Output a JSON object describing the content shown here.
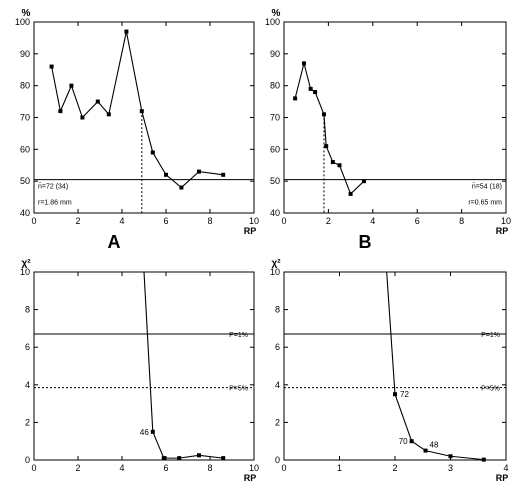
{
  "chart_data": [
    {
      "id": "A",
      "type": "line",
      "panel_label": "A",
      "ylabel": "%",
      "xlabel": "RP",
      "xlim": [
        0,
        10
      ],
      "ylim": [
        40,
        100
      ],
      "xticks": [
        0,
        2,
        4,
        6,
        8,
        10
      ],
      "yticks": [
        40,
        50,
        60,
        70,
        80,
        90,
        100
      ],
      "series": [
        {
          "x": [
            0.8,
            1.2,
            1.7,
            2.2,
            2.9,
            3.4,
            4.2,
            4.9,
            5.4,
            6.0,
            6.7,
            7.5,
            8.6
          ],
          "y": [
            86,
            72,
            80,
            70,
            75,
            71,
            97,
            72,
            59,
            52,
            48,
            53,
            52
          ]
        }
      ],
      "reference_line": {
        "y": 50.5,
        "label": "n̄=72 (34)"
      },
      "vertical_marker": {
        "x": 4.9,
        "y_top": 72
      },
      "annotation": "r=1.86 mm"
    },
    {
      "id": "B",
      "type": "line",
      "panel_label": "B",
      "ylabel": "%",
      "xlabel": "RP",
      "xlim": [
        0,
        10
      ],
      "ylim": [
        40,
        100
      ],
      "xticks": [
        0,
        2,
        4,
        6,
        8,
        10
      ],
      "yticks": [
        40,
        50,
        60,
        70,
        80,
        90,
        100
      ],
      "series": [
        {
          "x": [
            0.5,
            0.9,
            1.2,
            1.4,
            1.8,
            1.9,
            2.2,
            2.5,
            3.0,
            3.6
          ],
          "y": [
            76,
            87,
            79,
            78,
            71,
            61,
            56,
            55,
            46,
            50
          ]
        }
      ],
      "reference_line": {
        "y": 50.5,
        "label": "n̄=54 (18)"
      },
      "vertical_marker": {
        "x": 1.8,
        "y_top": 71
      },
      "annotation": "r=0.65 mm"
    },
    {
      "id": "C",
      "type": "line",
      "ylabel": "χ²",
      "xlabel": "RP",
      "xlim": [
        0,
        10
      ],
      "ylim": [
        0,
        10
      ],
      "xticks": [
        0,
        2,
        4,
        6,
        8,
        10
      ],
      "yticks": [
        0,
        2,
        4,
        6,
        8,
        10
      ],
      "series": [
        {
          "x": [
            5.0,
            5.4,
            5.9,
            6.6,
            7.5,
            8.6
          ],
          "y": [
            10,
            1.5,
            0.1,
            0.1,
            0.25,
            0.1
          ],
          "point_labels": [
            {
              "index": 1,
              "text": "46"
            }
          ]
        }
      ],
      "threshold_lines": [
        {
          "y": 6.7,
          "label": "P=1%",
          "style": "solid"
        },
        {
          "y": 3.85,
          "label": "P=5%",
          "style": "dotted"
        }
      ]
    },
    {
      "id": "D",
      "type": "line",
      "ylabel": "χ²",
      "xlabel": "RP",
      "xlim": [
        0,
        4
      ],
      "ylim": [
        0,
        10
      ],
      "xticks": [
        0,
        1,
        2,
        3,
        4
      ],
      "yticks": [
        0,
        2,
        4,
        6,
        8,
        10
      ],
      "series": [
        {
          "x": [
            1.85,
            2.0,
            2.3,
            2.55,
            3.0,
            3.6
          ],
          "y": [
            10,
            3.5,
            1.0,
            0.5,
            0.2,
            0.02
          ],
          "point_labels": [
            {
              "index": 1,
              "text": "72"
            },
            {
              "index": 2,
              "text": "70"
            },
            {
              "index": 3,
              "text": "48"
            }
          ]
        }
      ],
      "threshold_lines": [
        {
          "y": 6.7,
          "label": "P=1%",
          "style": "solid"
        },
        {
          "y": 3.85,
          "label": "P=5%",
          "style": "dotted"
        }
      ]
    }
  ]
}
